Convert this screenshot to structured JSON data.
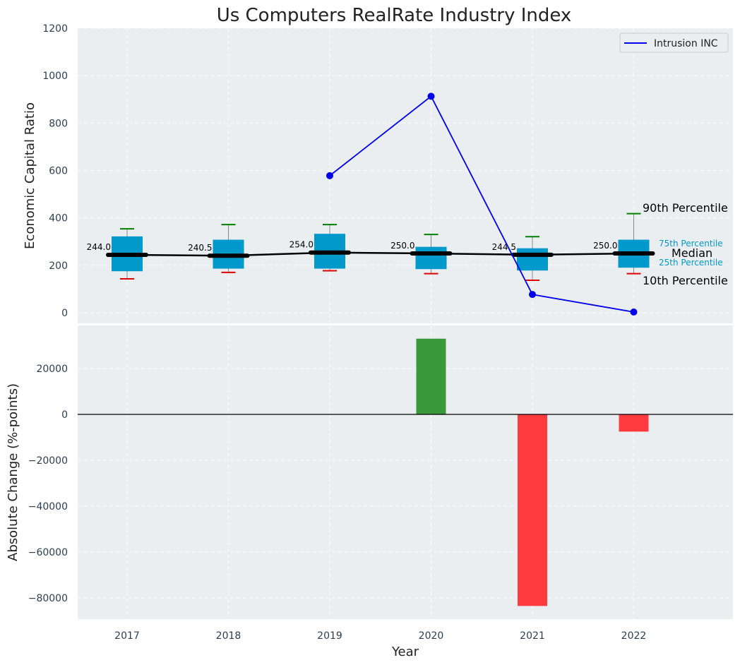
{
  "chart_data": [
    {
      "type": "box",
      "title": "Us Computers RealRate Industry Index",
      "xlabel": "",
      "ylabel": "Economic Capital Ratio",
      "ylim": [
        -50,
        1200
      ],
      "yticks": [
        0,
        200,
        400,
        600,
        800,
        1000,
        1200
      ],
      "categories": [
        "2017",
        "2018",
        "2019",
        "2020",
        "2021",
        "2022"
      ],
      "boxes": [
        {
          "year": "2017",
          "p10": 143,
          "p25": 175,
          "median": 244.0,
          "p75": 322,
          "p90": 354,
          "median_label": "244.0"
        },
        {
          "year": "2018",
          "p10": 170,
          "p25": 186,
          "median": 240.5,
          "p75": 308,
          "p90": 372,
          "median_label": "240.5"
        },
        {
          "year": "2019",
          "p10": 177,
          "p25": 186,
          "median": 254.0,
          "p75": 333,
          "p90": 372,
          "median_label": "254.0"
        },
        {
          "year": "2020",
          "p10": 165,
          "p25": 184,
          "median": 250.0,
          "p75": 278,
          "p90": 330,
          "median_label": "250.0"
        },
        {
          "year": "2021",
          "p10": 137,
          "p25": 178,
          "median": 244.5,
          "p75": 272,
          "p90": 321,
          "median_label": "244.5"
        },
        {
          "year": "2022",
          "p10": 165,
          "p25": 190,
          "median": 250.0,
          "p75": 308,
          "p90": 418,
          "median_label": "250.0"
        }
      ],
      "series": [
        {
          "name": "Intrusion INC",
          "color": "#0000ee",
          "x": [
            "2019",
            "2020",
            "2021",
            "2022"
          ],
          "values": [
            578,
            913,
            77,
            3
          ]
        }
      ],
      "legend": {
        "position": "top-right",
        "label": "Intrusion INC"
      },
      "annotations": {
        "p90": "90th Percentile",
        "p75": "75th Percentile",
        "median": "Median",
        "p25": "25th Percentile",
        "p10": "10th Percentile"
      },
      "colors": {
        "box": "#0099cc",
        "median_line": "#000000",
        "p90_cap": "#008000",
        "p10_cap": "#dd0000",
        "background": "#eaeef0"
      }
    },
    {
      "type": "bar",
      "xlabel": "Year",
      "ylabel": "Absolute Change (%-points)",
      "ylim": [
        -88000,
        37000
      ],
      "yticks": [
        -80000,
        -60000,
        -40000,
        -20000,
        0,
        20000
      ],
      "ytick_labels": [
        "−80000",
        "−60000",
        "−40000",
        "−20000",
        "0",
        "20000"
      ],
      "categories": [
        "2017",
        "2018",
        "2019",
        "2020",
        "2021",
        "2022"
      ],
      "values": [
        null,
        null,
        null,
        33000,
        -83500,
        -7500
      ],
      "colors": {
        "positive": "#3a9a3a",
        "negative": "#ff3b3f"
      }
    }
  ]
}
